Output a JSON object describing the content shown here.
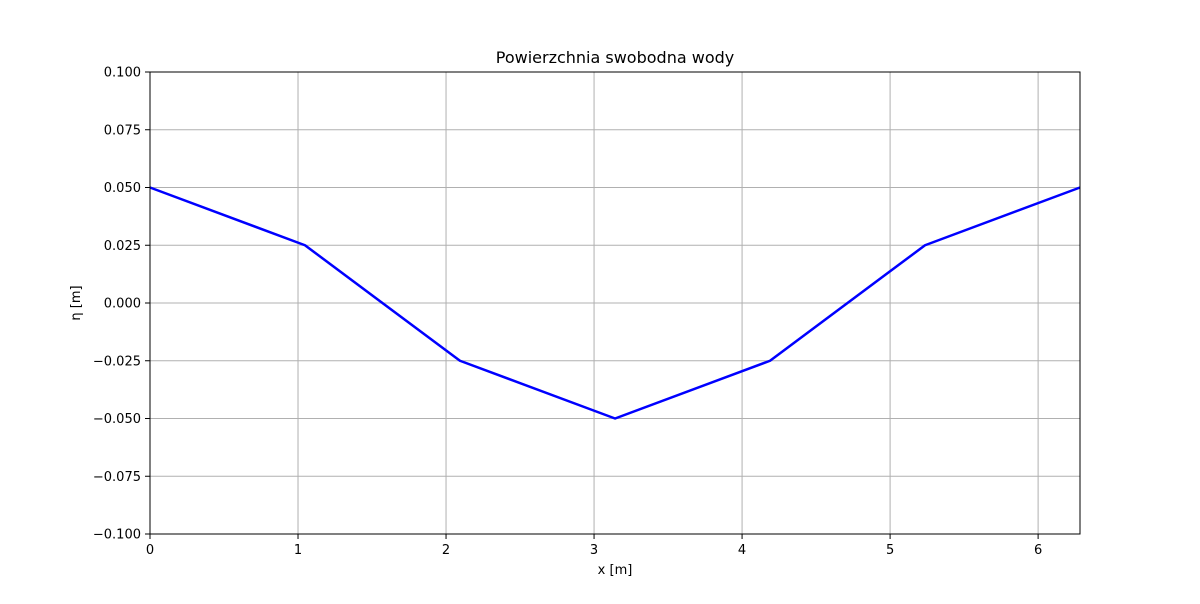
{
  "chart_data": {
    "type": "line",
    "title": "Powierzchnia swobodna wody",
    "xlabel": "x [m]",
    "ylabel": "η [m]",
    "xlim": [
      0,
      6.283
    ],
    "ylim": [
      -0.1,
      0.1
    ],
    "grid": true,
    "x_ticks": [
      0,
      1,
      2,
      3,
      4,
      5,
      6
    ],
    "x_tick_labels": [
      "0",
      "1",
      "2",
      "3",
      "4",
      "5",
      "6"
    ],
    "y_ticks": [
      -0.1,
      -0.075,
      -0.05,
      -0.025,
      0.0,
      0.025,
      0.05,
      0.075,
      0.1
    ],
    "y_tick_labels": [
      "−0.100",
      "−0.075",
      "−0.050",
      "−0.025",
      "0.000",
      "0.025",
      "0.050",
      "0.075",
      "0.100"
    ],
    "series": [
      {
        "color": "#0000ff",
        "x": [
          0,
          1.047,
          2.094,
          3.142,
          4.189,
          5.236,
          6.283
        ],
        "y": [
          0.05,
          0.025,
          -0.025,
          -0.05,
          -0.025,
          0.025,
          0.05
        ]
      }
    ]
  }
}
